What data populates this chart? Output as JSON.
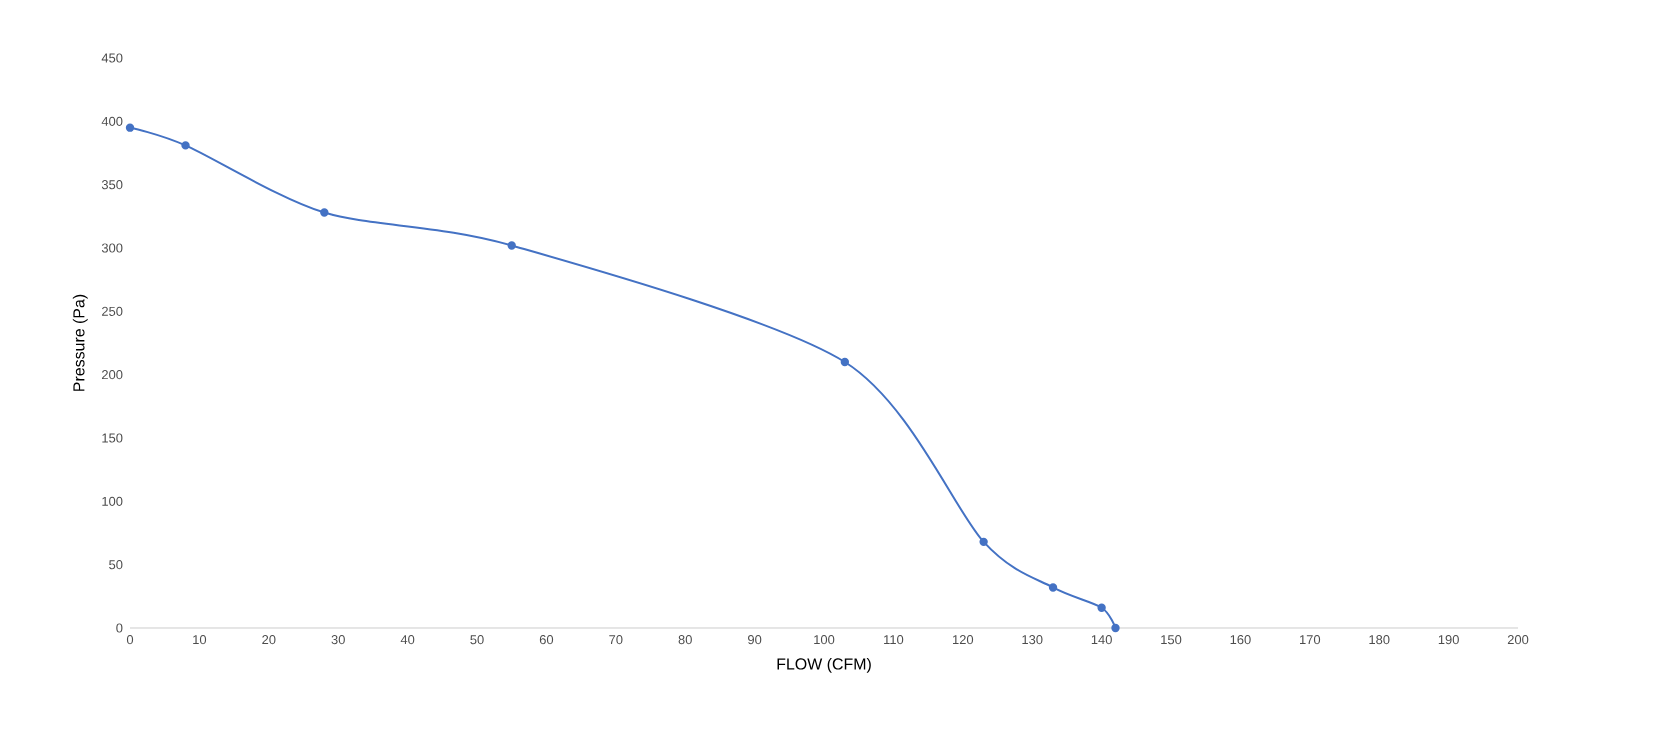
{
  "chart_data": {
    "type": "line",
    "xlabel": "FLOW (CFM)",
    "ylabel": "Pressure (Pa)",
    "series": [
      {
        "color": "#4472c4",
        "x": [
          0,
          8,
          28,
          55,
          103,
          123,
          133,
          140,
          142
        ],
        "values": [
          395,
          381,
          328,
          302,
          210,
          68,
          32,
          16,
          0
        ]
      }
    ],
    "xlim": [
      0,
      200
    ],
    "ylim": [
      0,
      450
    ],
    "xticks": [
      0,
      10,
      20,
      30,
      40,
      50,
      60,
      70,
      80,
      90,
      100,
      110,
      120,
      130,
      140,
      150,
      160,
      170,
      180,
      190,
      200
    ],
    "yticks": [
      0,
      50,
      100,
      150,
      200,
      250,
      300,
      350,
      400,
      450
    ],
    "grid": false,
    "marker": "circle",
    "line_style": "solid"
  }
}
